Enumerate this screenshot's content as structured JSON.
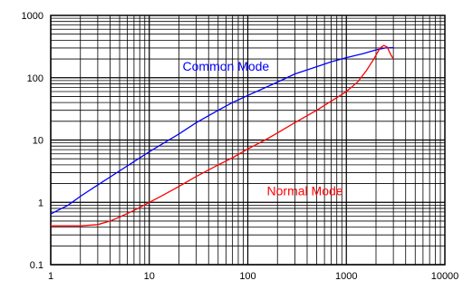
{
  "chart_data": {
    "type": "line",
    "title": "",
    "xlabel": "",
    "ylabel": "",
    "x_scale": "log",
    "y_scale": "log",
    "xlim": [
      1,
      10000
    ],
    "ylim": [
      0.1,
      1000
    ],
    "grid": true,
    "x_tick_labels": [
      "1",
      "10",
      "100",
      "1000",
      "10000"
    ],
    "y_tick_labels": [
      "1000",
      "100",
      "10",
      "1",
      "0.1"
    ],
    "x_ticks": [
      1,
      10,
      100,
      1000,
      10000
    ],
    "y_ticks": [
      1000,
      100,
      10,
      1,
      0.1
    ],
    "colors": {
      "common": "#0000ff",
      "normal": "#ff0000",
      "grid": "#000000"
    },
    "annotations": [
      {
        "text": "Common Mode",
        "series": "common",
        "x": 60,
        "y": 130,
        "color": "#0000ff"
      },
      {
        "text": "Normal Mode",
        "series": "normal",
        "x": 380,
        "y": 1.3,
        "color": "#ff0000"
      }
    ],
    "series": [
      {
        "key": "common",
        "x": [
          1,
          1.5,
          2,
          3,
          5,
          7,
          10,
          20,
          30,
          50,
          70,
          100,
          200,
          300,
          500,
          700,
          1000,
          1500,
          2000,
          2500,
          3000
        ],
        "y": [
          0.65,
          0.9,
          1.25,
          1.9,
          3.2,
          4.5,
          6.5,
          12.5,
          19,
          30,
          40,
          52,
          85,
          115,
          150,
          180,
          210,
          245,
          280,
          300,
          305
        ]
      },
      {
        "key": "normal",
        "x": [
          1,
          1.5,
          2,
          3,
          4,
          5,
          7,
          10,
          15,
          20,
          30,
          50,
          70,
          100,
          150,
          200,
          300,
          500,
          700,
          1000,
          1300,
          1600,
          1900,
          2200,
          2400,
          2600,
          2800,
          3000
        ],
        "y": [
          0.42,
          0.42,
          0.42,
          0.44,
          0.5,
          0.58,
          0.74,
          1.0,
          1.4,
          1.8,
          2.6,
          4.0,
          5.2,
          7.2,
          10,
          13,
          19,
          30,
          42,
          60,
          85,
          130,
          200,
          300,
          330,
          310,
          240,
          200
        ]
      }
    ]
  }
}
